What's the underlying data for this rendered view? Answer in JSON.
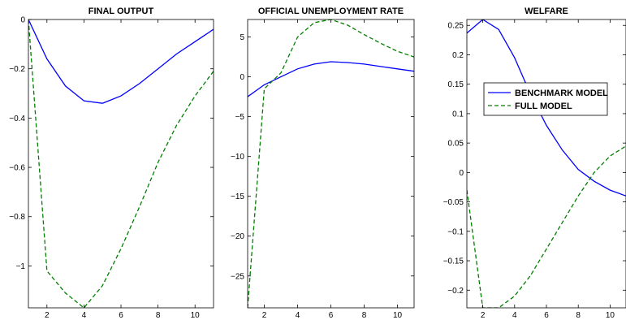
{
  "chart_data": [
    {
      "type": "line",
      "title": "FINAL OUTPUT",
      "xlabel": "",
      "ylabel": "",
      "xlim": [
        1,
        11
      ],
      "ylim": [
        -1.17,
        0
      ],
      "xticks": [
        2,
        4,
        6,
        8,
        10
      ],
      "yticks": [
        0,
        -0.2,
        -0.4,
        -0.6,
        -0.8,
        -1
      ],
      "ytick_labels": [
        "0",
        "−0.2",
        "−0.4",
        "−0.6",
        "−0.8",
        "−1"
      ],
      "x": [
        1,
        2,
        3,
        4,
        5,
        6,
        7,
        8,
        9,
        10,
        11
      ],
      "series": [
        {
          "style": "solid",
          "color": "#0000ff",
          "values": [
            0,
            -0.16,
            -0.27,
            -0.33,
            -0.34,
            -0.31,
            -0.26,
            -0.2,
            -0.14,
            -0.09,
            -0.04
          ]
        },
        {
          "style": "dashed",
          "color": "#007f00",
          "values": [
            0,
            -1.02,
            -1.11,
            -1.17,
            -1.08,
            -0.93,
            -0.76,
            -0.58,
            -0.43,
            -0.31,
            -0.21
          ]
        }
      ]
    },
    {
      "type": "line",
      "title": "OFFICIAL UNEMPLOYMENT RATE",
      "xlabel": "",
      "ylabel": "",
      "xlim": [
        1,
        11
      ],
      "ylim": [
        -29,
        7.2
      ],
      "xticks": [
        2,
        4,
        6,
        8,
        10
      ],
      "yticks": [
        5,
        0,
        -5,
        -10,
        -15,
        -20,
        -25
      ],
      "ytick_labels": [
        "5",
        "0",
        "−5",
        "−10",
        "−15",
        "−20",
        "−25"
      ],
      "x": [
        1,
        2,
        3,
        4,
        5,
        6,
        7,
        8,
        9,
        10,
        11
      ],
      "series": [
        {
          "style": "solid",
          "color": "#0000ff",
          "values": [
            -2.5,
            -1.0,
            0.0,
            1.0,
            1.6,
            1.9,
            1.8,
            1.6,
            1.3,
            1.0,
            0.7
          ]
        },
        {
          "style": "dashed",
          "color": "#007f00",
          "values": [
            -29,
            -1.5,
            0.5,
            5.0,
            6.8,
            7.2,
            6.5,
            5.3,
            4.2,
            3.2,
            2.5
          ]
        }
      ]
    },
    {
      "type": "line",
      "title": "WELFARE",
      "xlabel": "",
      "ylabel": "",
      "xlim": [
        1,
        11
      ],
      "ylim": [
        -0.23,
        0.26
      ],
      "xticks": [
        2,
        4,
        6,
        8,
        10
      ],
      "yticks": [
        0.25,
        0.2,
        0.15,
        0.1,
        0.05,
        0,
        -0.05,
        -0.1,
        -0.15,
        -0.2
      ],
      "ytick_labels": [
        "0.25",
        "0.2",
        "0.15",
        "0.1",
        "0.05",
        "0",
        "−0.05",
        "−0.1",
        "−0.15",
        "−0.2"
      ],
      "x": [
        1,
        2,
        3,
        4,
        5,
        6,
        7,
        8,
        9,
        10,
        11
      ],
      "legend": {
        "position": "upper-right",
        "entries": [
          "BENCHMARK MODEL",
          "FULL MODEL"
        ]
      },
      "series": [
        {
          "name": "BENCHMARK MODEL",
          "style": "solid",
          "color": "#0000ff",
          "values": [
            0.237,
            0.26,
            0.243,
            0.195,
            0.133,
            0.08,
            0.038,
            0.005,
            -0.015,
            -0.03,
            -0.04
          ]
        },
        {
          "name": "FULL MODEL",
          "style": "dashed",
          "color": "#007f00",
          "values": [
            -0.03,
            -0.23,
            -0.23,
            -0.21,
            -0.175,
            -0.13,
            -0.085,
            -0.04,
            0.0,
            0.028,
            0.045
          ]
        }
      ]
    }
  ]
}
